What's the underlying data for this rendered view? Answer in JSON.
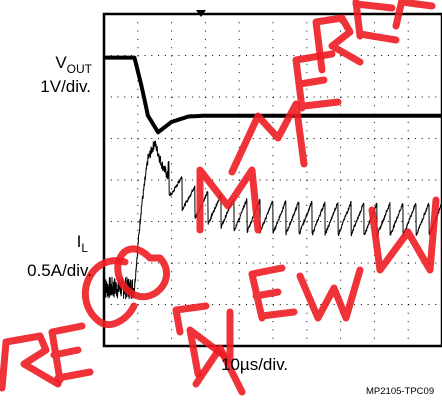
{
  "chart_data": {
    "type": "line",
    "title": "",
    "xlabel": "10µs/div.",
    "figure_id": "MP2105-TPC09",
    "watermark": "RECOMMENDED FOR NEW DESIGNS",
    "watermark_color": "#ee1c24",
    "trace_color": "#000000",
    "grid": true,
    "divisions": {
      "x": 10,
      "y": 8
    },
    "x_range_div": [
      0,
      10
    ],
    "x_event_div": 0.9,
    "series": [
      {
        "name_main": "V",
        "name_sub": "OUT",
        "scale_label": "1V/div.",
        "t": [
          0,
          0.9,
          1.1,
          1.3,
          1.6,
          2.0,
          2.5,
          3.0,
          3.7,
          10
        ],
        "y": [
          6.95,
          6.95,
          6.3,
          5.55,
          5.15,
          5.4,
          5.53,
          5.55,
          5.55,
          5.55
        ]
      },
      {
        "name_main": "I",
        "name_sub": "L",
        "scale_label": "0.5A/div.",
        "t": [
          0,
          0.9,
          0.95,
          1.1,
          1.3,
          1.5,
          1.7,
          2.0,
          2.5,
          3.0,
          4.0,
          6.0,
          8.0,
          10
        ],
        "y": [
          1.4,
          1.4,
          1.9,
          3.3,
          4.5,
          4.9,
          4.4,
          3.9,
          3.55,
          3.35,
          3.15,
          3.08,
          3.05,
          3.05
        ],
        "ripple_div": 0.4
      }
    ]
  }
}
